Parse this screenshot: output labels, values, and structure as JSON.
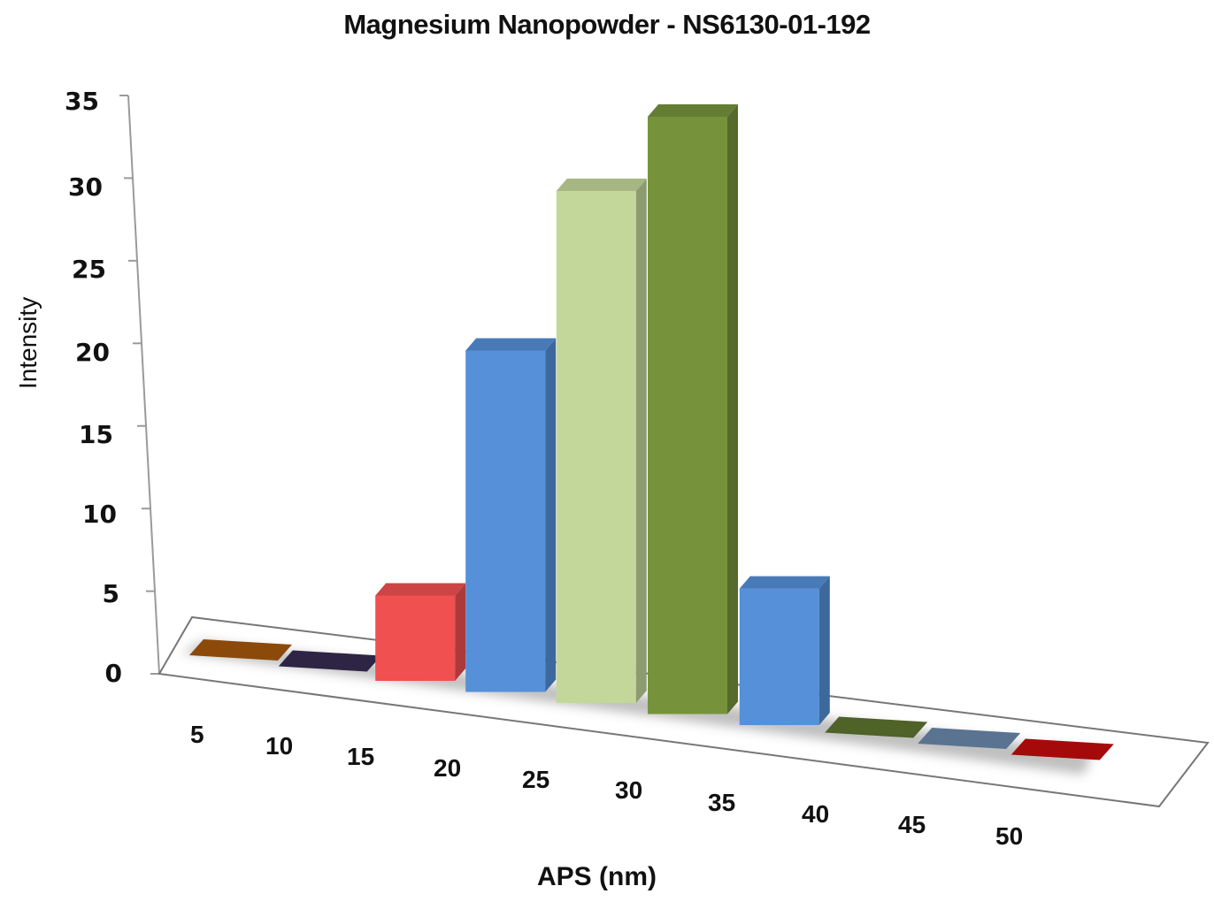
{
  "chart_data": {
    "type": "bar",
    "subtype": "3d-column",
    "title": "Magnesium Nanopowder - NS6130-01-192",
    "xlabel": "APS (nm)",
    "ylabel": "Intensity",
    "categories": [
      "5",
      "10",
      "15",
      "20",
      "25",
      "30",
      "35",
      "40",
      "45",
      "50"
    ],
    "values": [
      0,
      0,
      5,
      20,
      30,
      35,
      8,
      0,
      0,
      0
    ],
    "colors": [
      "#8B4A0A",
      "#2E2545",
      "#F05050",
      "#5590D8",
      "#C4D79B",
      "#76933C",
      "#5590D8",
      "#4F6228",
      "#5A7391",
      "#A50A0A"
    ],
    "ylim": [
      0,
      35
    ],
    "yticks": [
      "0",
      "5",
      "10",
      "15",
      "20",
      "25",
      "30",
      "35"
    ],
    "grid": false,
    "legend": "none"
  }
}
